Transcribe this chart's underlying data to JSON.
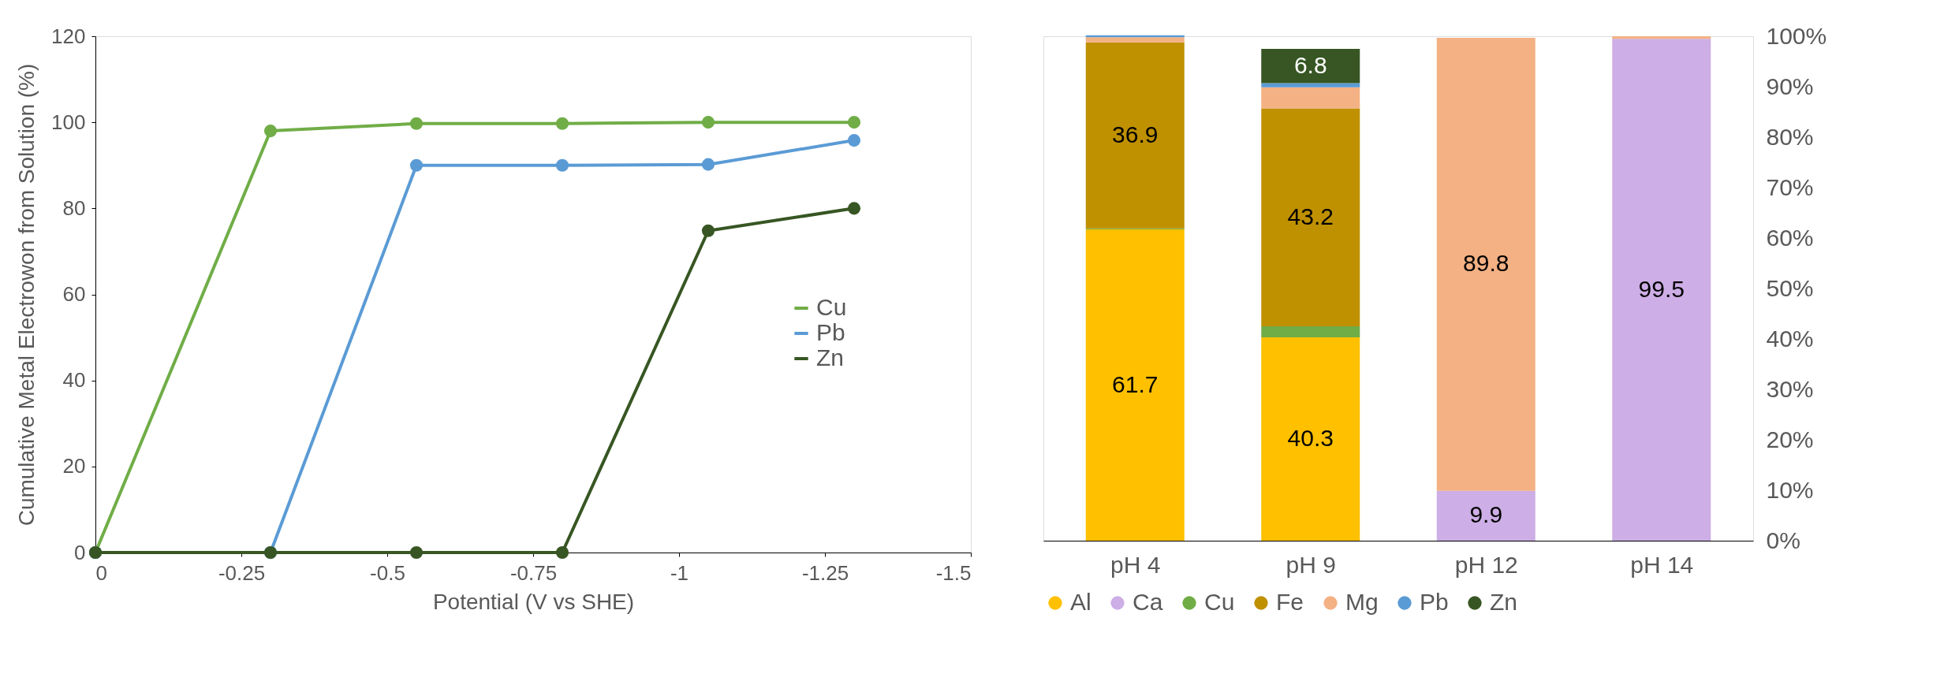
{
  "chart_data": [
    {
      "type": "line",
      "xlabel": "Potential (V vs SHE)",
      "ylabel": "Cumulative Metal Electrowon from Solution (%)",
      "x": [
        0,
        -0.3,
        -0.55,
        -0.8,
        -1.05,
        -1.3
      ],
      "xlim": [
        0,
        -1.5
      ],
      "xticks": [
        0,
        -0.25,
        -0.5,
        -0.75,
        -1,
        -1.25,
        -1.5
      ],
      "ylim": [
        0,
        120
      ],
      "yticks": [
        0,
        20,
        40,
        60,
        80,
        100,
        120
      ],
      "marker": "circle",
      "grid": false,
      "legend": "bottom right",
      "series": [
        {
          "name": "Cu",
          "color": "#70ad47",
          "values": [
            0,
            98,
            99.7,
            99.7,
            100,
            100
          ]
        },
        {
          "name": "Pb",
          "color": "#5b9bd5",
          "values": [
            0,
            0,
            90,
            90,
            90.2,
            95.8
          ]
        },
        {
          "name": "Zn",
          "color": "#375623",
          "values": [
            0,
            0,
            0,
            0,
            74.8,
            80
          ]
        }
      ]
    },
    {
      "type": "bar",
      "stacked": true,
      "categories": [
        "pH 4",
        "pH 9",
        "pH 12",
        "pH 14"
      ],
      "ylim": [
        0,
        100
      ],
      "yticks": [
        {
          "value": 0,
          "label": "0%"
        },
        {
          "value": 10,
          "label": "10%"
        },
        {
          "value": 20,
          "label": "20%"
        },
        {
          "value": 30,
          "label": "30%"
        },
        {
          "value": 40,
          "label": "40%"
        },
        {
          "value": 50,
          "label": "50%"
        },
        {
          "value": 60,
          "label": "60%"
        },
        {
          "value": 70,
          "label": "70%"
        },
        {
          "value": 80,
          "label": "80%"
        },
        {
          "value": 90,
          "label": "90%"
        },
        {
          "value": 100,
          "label": "100%"
        }
      ],
      "grid": false,
      "legend": "bottom",
      "series": [
        {
          "name": "Al",
          "color": "#ffc000",
          "values": [
            61.7,
            40.3,
            0,
            0
          ],
          "value_labels": [
            "61.7",
            "40.3",
            null,
            null
          ]
        },
        {
          "name": "Ca",
          "color": "#cdaee6",
          "values": [
            0,
            0,
            9.9,
            99.5
          ],
          "value_labels": [
            null,
            null,
            "9.9",
            "99.5"
          ]
        },
        {
          "name": "Cu",
          "color": "#70ad47",
          "values": [
            0.2,
            2.2,
            0,
            0
          ],
          "value_labels": [
            null,
            null,
            null,
            null
          ]
        },
        {
          "name": "Fe",
          "color": "#bf9000",
          "values": [
            36.9,
            43.2,
            0,
            0
          ],
          "value_labels": [
            "36.9",
            "43.2",
            null,
            null
          ]
        },
        {
          "name": "Mg",
          "color": "#f4b183",
          "values": [
            1.0,
            4.2,
            89.8,
            0.5
          ],
          "value_labels": [
            null,
            null,
            "89.8",
            null
          ]
        },
        {
          "name": "Pb",
          "color": "#5b9bd5",
          "values": [
            0.4,
            0.8,
            0,
            0
          ],
          "value_labels": [
            null,
            null,
            null,
            null
          ]
        },
        {
          "name": "Zn",
          "color": "#375623",
          "values": [
            0,
            6.8,
            0,
            0
          ],
          "value_labels": [
            null,
            "6.8",
            null,
            null
          ]
        }
      ]
    }
  ]
}
